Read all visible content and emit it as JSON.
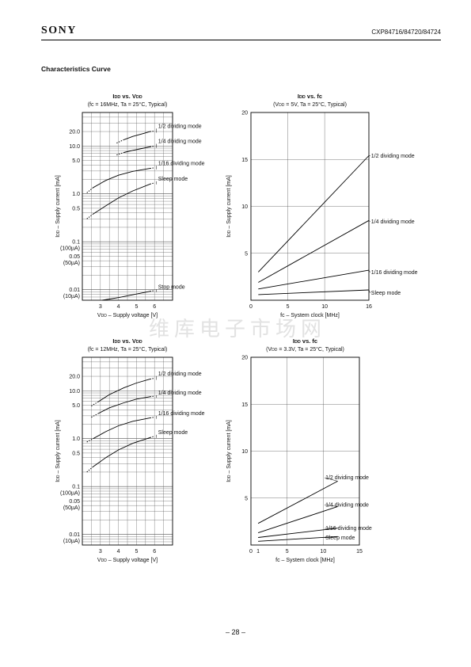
{
  "header": {
    "brand": "SONY",
    "part_number": "CXP84716/84720/84724"
  },
  "section_title": "Characteristics Curve",
  "watermark": "维库电子市场网",
  "page_number": "– 28 –",
  "chart_data": [
    {
      "id": "c1",
      "type": "line",
      "title": "IDD vs. VDD",
      "subtitle": "(fc = 16MHz, Ta = 25°C, Typical)",
      "xlabel": "VDD – Supply voltage [V]",
      "ylabel": "IDD – Supply current [mA]",
      "x_scale": "linear",
      "y_scale": "log",
      "xlim": [
        2.0,
        7.0
      ],
      "ylim": [
        0.006,
        50
      ],
      "x_ticks": [
        3,
        4,
        5,
        6
      ],
      "y_tick_labels": [
        {
          "v": 20,
          "lines": [
            "20.0"
          ]
        },
        {
          "v": 10,
          "lines": [
            "10.0"
          ]
        },
        {
          "v": 5,
          "lines": [
            "5.0"
          ]
        },
        {
          "v": 1,
          "lines": [
            "1.0"
          ]
        },
        {
          "v": 0.5,
          "lines": [
            "0.5"
          ]
        },
        {
          "v": 0.1,
          "lines": [
            "0.1",
            "(100µA)"
          ]
        },
        {
          "v": 0.05,
          "lines": [
            "0.05",
            "(50µA)"
          ]
        },
        {
          "v": 0.01,
          "lines": [
            "0.01",
            "(10µA)"
          ]
        }
      ],
      "grid": true,
      "series": [
        {
          "name": "1/2 dividing mode",
          "dashed": [
            [
              3.9,
              11.5
            ],
            [
              4.3,
              13.5
            ]
          ],
          "solid": [
            [
              4.3,
              13.5
            ],
            [
              4.8,
              15.8
            ],
            [
              5.4,
              18.3
            ],
            [
              5.75,
              20
            ]
          ],
          "dashed_end": [
            [
              5.75,
              20
            ],
            [
              6.0,
              20.5
            ]
          ],
          "label_at": [
            6.2,
            24
          ]
        },
        {
          "name": "1/4 dividing mode",
          "dashed": [
            [
              3.9,
              6.5
            ],
            [
              4.3,
              7.3
            ]
          ],
          "solid": [
            [
              4.3,
              7.3
            ],
            [
              4.8,
              8.1
            ],
            [
              5.4,
              9.0
            ],
            [
              5.75,
              9.6
            ]
          ],
          "dashed_end": [
            [
              5.75,
              9.6
            ],
            [
              6.0,
              9.9
            ]
          ],
          "label_at": [
            6.2,
            11.5
          ]
        },
        {
          "name": "1/16 dividing mode",
          "dashed": [
            [
              2.25,
              1.05
            ],
            [
              2.6,
              1.35
            ]
          ],
          "solid": [
            [
              2.6,
              1.35
            ],
            [
              3.3,
              1.9
            ],
            [
              4.0,
              2.45
            ],
            [
              4.8,
              2.95
            ],
            [
              5.75,
              3.4
            ]
          ],
          "dashed_end": [
            [
              5.75,
              3.4
            ],
            [
              6.0,
              3.5
            ]
          ],
          "label_at": [
            6.2,
            4.0
          ]
        },
        {
          "name": "Sleep mode",
          "dashed": [
            [
              2.25,
              0.3
            ],
            [
              2.6,
              0.38
            ]
          ],
          "solid": [
            [
              2.6,
              0.38
            ],
            [
              3.3,
              0.56
            ],
            [
              4.0,
              0.82
            ],
            [
              4.8,
              1.15
            ],
            [
              5.75,
              1.6
            ]
          ],
          "dashed_end": [
            [
              5.75,
              1.6
            ],
            [
              6.0,
              1.7
            ]
          ],
          "label_at": [
            6.2,
            1.9
          ]
        },
        {
          "name": "Stop mode",
          "solid": [
            [
              3.1,
              0.006
            ],
            [
              4.0,
              0.0068
            ],
            [
              4.8,
              0.0078
            ],
            [
              5.75,
              0.0092
            ]
          ],
          "dashed_end": [
            [
              5.75,
              0.0092
            ],
            [
              6.0,
              0.0096
            ]
          ],
          "label_at": [
            6.2,
            0.0105
          ]
        }
      ]
    },
    {
      "id": "c2",
      "type": "line",
      "title": "IDD vs. fc",
      "subtitle": "(VDD = 5V,  Ta = 25°C, Typical)",
      "xlabel": "fc – System clock [MHz]",
      "ylabel": "IDD – Supply current [mA]",
      "x_scale": "linear",
      "y_scale": "linear",
      "xlim": [
        0,
        16
      ],
      "ylim": [
        0,
        20
      ],
      "x_ticks": [
        0,
        5,
        10,
        16
      ],
      "y_ticks": [
        5,
        10,
        15,
        20
      ],
      "grid": true,
      "series": [
        {
          "name": "1/2 dividing mode",
          "points": [
            [
              1,
              3.0
            ],
            [
              16,
              15.4
            ]
          ],
          "label_at": [
            16.3,
            15.2
          ]
        },
        {
          "name": "1/4 dividing mode",
          "points": [
            [
              1,
              1.9
            ],
            [
              16,
              8.5
            ]
          ],
          "label_at": [
            16.3,
            8.2
          ]
        },
        {
          "name": "1/16 dividing mode",
          "points": [
            [
              1,
              1.2
            ],
            [
              16,
              3.2
            ]
          ],
          "label_at": [
            16.3,
            2.8
          ]
        },
        {
          "name": "Sleep mode",
          "points": [
            [
              1,
              0.6
            ],
            [
              16,
              1.1
            ]
          ],
          "label_at": [
            16.3,
            0.6
          ]
        }
      ]
    },
    {
      "id": "c3",
      "type": "line",
      "title": "IDD vs. VDD",
      "subtitle": "(fc = 12MHz, Ta = 25°C, Typical)",
      "xlabel": "VDD – Supply voltage [V]",
      "ylabel": "IDD – Supply current [mA]",
      "x_scale": "linear",
      "y_scale": "log",
      "xlim": [
        2.0,
        7.0
      ],
      "ylim": [
        0.006,
        50
      ],
      "x_ticks": [
        3,
        4,
        5,
        6
      ],
      "y_tick_labels": [
        {
          "v": 20,
          "lines": [
            "20.0"
          ]
        },
        {
          "v": 10,
          "lines": [
            "10.0"
          ]
        },
        {
          "v": 5,
          "lines": [
            "5.0"
          ]
        },
        {
          "v": 1,
          "lines": [
            "1.0"
          ]
        },
        {
          "v": 0.5,
          "lines": [
            "0.5"
          ]
        },
        {
          "v": 0.1,
          "lines": [
            "0.1",
            "(100µA)"
          ]
        },
        {
          "v": 0.05,
          "lines": [
            "0.05",
            "(50µA)"
          ]
        },
        {
          "v": 0.01,
          "lines": [
            "0.01",
            "(10µA)"
          ]
        }
      ],
      "grid": true,
      "series": [
        {
          "name": "1/2 dividing mode",
          "dashed": [
            [
              2.5,
              4.8
            ],
            [
              2.85,
              5.8
            ]
          ],
          "solid": [
            [
              2.85,
              5.8
            ],
            [
              3.5,
              8.3
            ],
            [
              4.3,
              11.5
            ],
            [
              5.0,
              14.5
            ],
            [
              5.75,
              17.5
            ]
          ],
          "dashed_end": [
            [
              5.75,
              17.5
            ],
            [
              6.0,
              18.2
            ]
          ],
          "label_at": [
            6.2,
            21
          ]
        },
        {
          "name": "1/4 dividing mode",
          "dashed": [
            [
              2.5,
              2.8
            ],
            [
              2.85,
              3.3
            ]
          ],
          "solid": [
            [
              2.85,
              3.3
            ],
            [
              3.5,
              4.4
            ],
            [
              4.3,
              5.6
            ],
            [
              5.0,
              6.7
            ],
            [
              5.75,
              7.5
            ]
          ],
          "dashed_end": [
            [
              5.75,
              7.5
            ],
            [
              6.0,
              7.7
            ]
          ],
          "label_at": [
            6.2,
            8.4
          ]
        },
        {
          "name": "1/16 dividing mode",
          "dashed": [
            [
              2.25,
              0.85
            ],
            [
              2.6,
              1.0
            ]
          ],
          "solid": [
            [
              2.6,
              1.0
            ],
            [
              3.3,
              1.4
            ],
            [
              4.0,
              1.85
            ],
            [
              4.8,
              2.3
            ],
            [
              5.75,
              2.7
            ]
          ],
          "dashed_end": [
            [
              5.75,
              2.7
            ],
            [
              6.0,
              2.8
            ]
          ],
          "label_at": [
            6.2,
            3.1
          ]
        },
        {
          "name": "Sleep mode",
          "dashed": [
            [
              2.25,
              0.2
            ],
            [
              2.6,
              0.26
            ]
          ],
          "solid": [
            [
              2.6,
              0.26
            ],
            [
              3.3,
              0.4
            ],
            [
              4.0,
              0.58
            ],
            [
              4.8,
              0.8
            ],
            [
              5.75,
              1.05
            ]
          ],
          "dashed_end": [
            [
              5.75,
              1.05
            ],
            [
              6.0,
              1.12
            ]
          ],
          "label_at": [
            6.2,
            1.25
          ]
        }
      ]
    },
    {
      "id": "c4",
      "type": "line",
      "title": "IDD vs. fc",
      "subtitle": "(VDD = 3.3V,  Ta = 25°C, Typical)",
      "xlabel": "fc – System clock [MHz]",
      "ylabel": "IDD – Supply current [mA]",
      "x_scale": "linear",
      "y_scale": "linear",
      "xlim": [
        0,
        15
      ],
      "ylim": [
        0,
        20
      ],
      "x_ticks": [
        0,
        1,
        5,
        10,
        15
      ],
      "y_ticks": [
        5,
        10,
        15,
        20
      ],
      "grid": true,
      "series": [
        {
          "name": "1/2 dividing mode",
          "points": [
            [
              1,
              2.3
            ],
            [
              12,
              6.8
            ]
          ],
          "label_at": [
            10.3,
            7.0
          ]
        },
        {
          "name": "1/4 dividing mode",
          "points": [
            [
              1,
              1.3
            ],
            [
              12,
              4.1
            ]
          ],
          "label_at": [
            10.3,
            4.1
          ]
        },
        {
          "name": "1/16 dividing mode",
          "points": [
            [
              1,
              0.8
            ],
            [
              12,
              1.8
            ]
          ],
          "label_at": [
            10.3,
            1.6
          ]
        },
        {
          "name": "Sleep mode",
          "points": [
            [
              1,
              0.4
            ],
            [
              12,
              0.9
            ]
          ],
          "label_at": [
            10.3,
            0.6
          ]
        }
      ]
    }
  ]
}
